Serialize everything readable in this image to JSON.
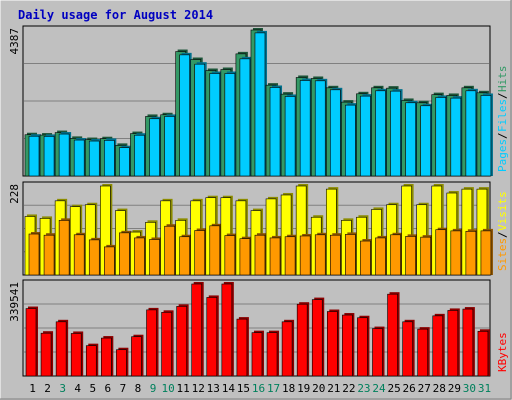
{
  "chart_data": {
    "type": "bar",
    "title": "Daily usage for August 2014",
    "categories": [
      "1",
      "2",
      "3",
      "4",
      "5",
      "6",
      "7",
      "8",
      "9",
      "10",
      "11",
      "12",
      "13",
      "14",
      "15",
      "16",
      "17",
      "18",
      "19",
      "20",
      "21",
      "22",
      "23",
      "24",
      "25",
      "26",
      "27",
      "28",
      "29",
      "30",
      "31"
    ],
    "weekend_days": [
      "3",
      "9",
      "10",
      "16",
      "17",
      "23",
      "24",
      "30",
      "31"
    ],
    "colors": {
      "background": "#c0c0c0",
      "title": "#0000c0",
      "hits": "#339966",
      "files": "#00ccff",
      "pages": "#00ccff",
      "visits": "#ffff00",
      "sites": "#ff9900",
      "kbytes": "#ff0000",
      "weekday_label": "#000000",
      "weekend_label": "#00805c"
    },
    "panels": [
      {
        "id": "hits-files-pages",
        "max_label": "4387",
        "ylim": [
          0,
          4387
        ],
        "legend": [
          "Pages",
          "Files",
          "Hits"
        ],
        "series": [
          {
            "name": "Hits",
            "values": [
              1240,
              1230,
              1305,
              1130,
              1095,
              1120,
              920,
              1275,
              1790,
              1840,
              3740,
              3500,
              3170,
              3200,
              3670,
              4387,
              2730,
              2460,
              2960,
              2930,
              2650,
              2220,
              2470,
              2650,
              2640,
              2270,
              2200,
              2445,
              2420,
              2650,
              2500
            ]
          },
          {
            "name": "Files",
            "values": [
              1195,
              1190,
              1260,
              1080,
              1050,
              1070,
              850,
              1225,
              1720,
              1790,
              3640,
              3360,
              3080,
              3080,
              3520,
              4300,
              2660,
              2390,
              2870,
              2860,
              2590,
              2130,
              2400,
              2560,
              2550,
              2200,
              2110,
              2360,
              2340,
              2560,
              2420
            ]
          }
        ]
      },
      {
        "id": "visits-sites",
        "max_label": "228",
        "ylim": [
          0,
          228
        ],
        "legend": [
          "Sites",
          "Visits"
        ],
        "series": [
          {
            "name": "Visits",
            "values": [
              150,
              145,
              190,
              175,
              180,
              228,
              165,
              110,
              135,
              190,
              140,
              190,
              198,
              198,
              190,
              165,
              195,
              205,
              228,
              148,
              220,
              140,
              148,
              168,
              180,
              228,
              180,
              228,
              210,
              220,
              220
            ]
          },
          {
            "name": "Sites",
            "values": [
              105,
              102,
              140,
              103,
              90,
              72,
              108,
              95,
              91,
              125,
              98,
              114,
              126,
              101,
              93,
              102,
              95,
              98,
              100,
              103,
              102,
              104,
              87,
              95,
              103,
              99,
              97,
              116,
              113,
              112,
              113
            ]
          }
        ]
      },
      {
        "id": "kbytes",
        "max_label": "339541",
        "ylim": [
          0,
          339541
        ],
        "legend": [
          "KBytes"
        ],
        "series": [
          {
            "name": "KBytes",
            "values": [
              249000,
              158000,
              200000,
              157000,
              112000,
              140000,
              97000,
              145000,
              244000,
              235000,
              257000,
              339541,
              290000,
              339541,
              210000,
              160000,
              160000,
              200000,
              265000,
              282000,
              238000,
              225000,
              215000,
              175000,
              302000,
              200000,
              173000,
              222000,
              242000,
              247000,
              165000
            ]
          }
        ]
      }
    ]
  }
}
